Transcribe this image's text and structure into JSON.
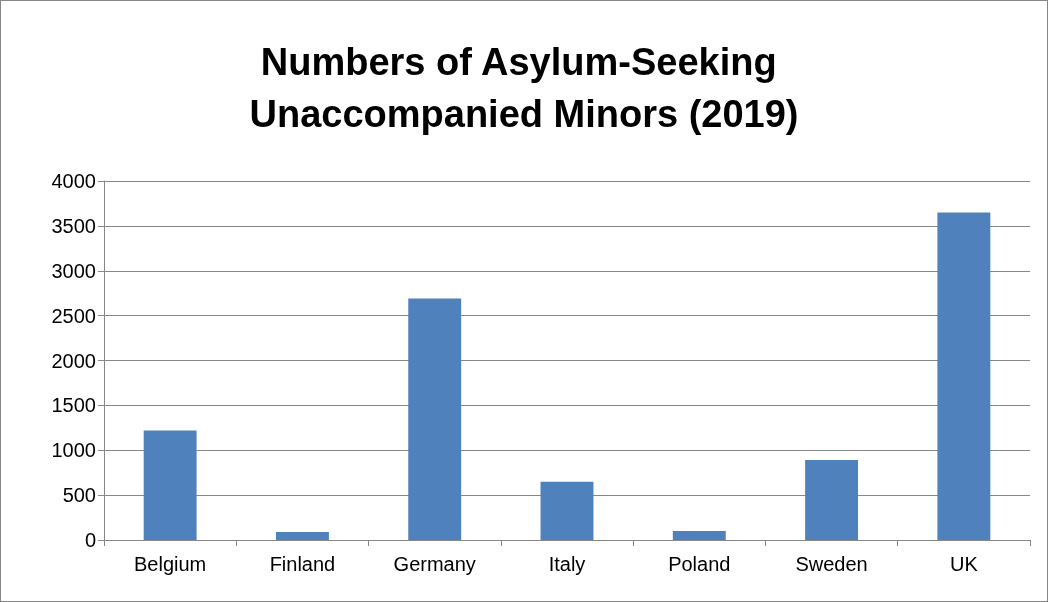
{
  "chart_data": {
    "type": "bar",
    "title": "Numbers of Asylum-Seeking Unaccompanied Minors (2019)",
    "categories": [
      "Belgium",
      "Finland",
      "Germany",
      "Italy",
      "Poland",
      "Sweden",
      "UK"
    ],
    "values": [
      1220,
      90,
      2690,
      650,
      100,
      890,
      3650
    ],
    "color": "#4f81bd",
    "ylim": [
      0,
      4000
    ],
    "yticks": [
      0,
      500,
      1000,
      1500,
      2000,
      2500,
      3000,
      3500,
      4000
    ],
    "grid": "y"
  }
}
